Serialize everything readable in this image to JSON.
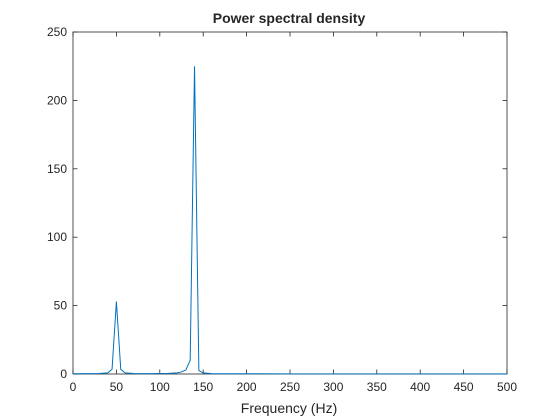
{
  "chart_data": {
    "type": "line",
    "title": "Power spectral density",
    "xlabel": "Frequency (Hz)",
    "ylabel": "",
    "xlim": [
      0,
      500
    ],
    "ylim": [
      0,
      250
    ],
    "xticks": [
      0,
      50,
      100,
      150,
      200,
      250,
      300,
      350,
      400,
      450,
      500
    ],
    "yticks": [
      0,
      50,
      100,
      150,
      200,
      250
    ],
    "grid": false,
    "box": true,
    "line_color": "#0072BD",
    "axis_color": "#262626",
    "series": [
      {
        "x": [
          0,
          10,
          20,
          30,
          40,
          45,
          50,
          55,
          60,
          70,
          80,
          90,
          100,
          110,
          120,
          125,
          130,
          135,
          140,
          145,
          150,
          160,
          170,
          200,
          250,
          300,
          350,
          400,
          450,
          500
        ],
        "y": [
          0.2,
          0.3,
          0.3,
          0.4,
          0.8,
          3.5,
          53,
          3.5,
          0.8,
          0.4,
          0.3,
          0.3,
          0.4,
          0.5,
          0.8,
          1.5,
          3,
          10,
          225,
          2.5,
          0.8,
          0.3,
          0.2,
          0.15,
          0.1,
          0.1,
          0.1,
          0.1,
          0.1,
          0.1
        ]
      }
    ]
  }
}
